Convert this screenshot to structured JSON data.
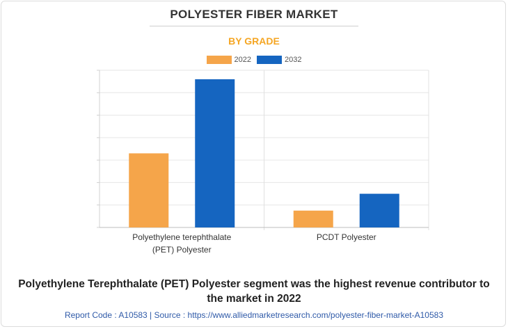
{
  "header": {
    "title": "POLYESTER FIBER MARKET",
    "subtitle": "BY GRADE"
  },
  "chart_data": {
    "type": "bar",
    "title": "POLYESTER FIBER MARKET",
    "subtitle": "BY GRADE",
    "categories": [
      [
        "Polyethylene terephthalate",
        "(PET) Polyester"
      ],
      [
        "PCDT Polyester"
      ]
    ],
    "series": [
      {
        "name": "2022",
        "color": "#f5a54a",
        "values": [
          3.3,
          0.75
        ]
      },
      {
        "name": "2032",
        "color": "#1565c0",
        "values": [
          6.6,
          1.5
        ]
      }
    ],
    "ylim": [
      0,
      7
    ],
    "y_gridlines": 7,
    "grid": true,
    "legend": "top-center",
    "xlabel": "",
    "ylabel": ""
  },
  "caption": {
    "line1": "Polyethylene Terephthalate (PET) Polyester segment was the highest revenue contributor to",
    "line2": "the market in 2022"
  },
  "footer": {
    "text": "Report Code : A10583  |  Source : https://www.alliedmarketresearch.com/polyester-fiber-market-A10583"
  }
}
